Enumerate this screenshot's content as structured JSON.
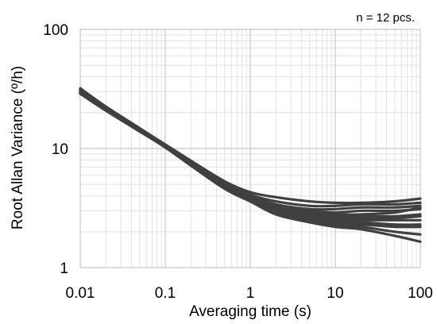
{
  "chart_data": {
    "type": "line",
    "title": "",
    "xlabel": "Averaging time (s)",
    "ylabel": "Root Allan Variance (º/h)",
    "annotation": "n = 12 pcs.",
    "x_scale": "log",
    "y_scale": "log",
    "xlim": [
      0.01,
      100
    ],
    "ylim": [
      1,
      100
    ],
    "x_ticks": [
      "0.01",
      "0.1",
      "1",
      "10",
      "100"
    ],
    "y_ticks": [
      "1",
      "10",
      "100"
    ],
    "grid": true,
    "legend": "none",
    "line_color": "#404040",
    "x": [
      0.01,
      0.02,
      0.05,
      0.1,
      0.2,
      0.5,
      1,
      2,
      5,
      10,
      20,
      50,
      100
    ],
    "series": [
      {
        "values": [
          32.0,
          22.5,
          14.8,
          10.8,
          7.9,
          5.3,
          4.3,
          3.9,
          3.6,
          3.5,
          3.5,
          3.6,
          3.8
        ]
      },
      {
        "values": [
          31.5,
          22.2,
          14.7,
          10.7,
          7.8,
          5.2,
          4.1,
          3.6,
          3.3,
          3.3,
          3.4,
          3.4,
          3.5
        ]
      },
      {
        "values": [
          31.0,
          22.0,
          14.6,
          10.7,
          7.7,
          5.1,
          4.0,
          3.4,
          3.1,
          3.1,
          3.2,
          3.2,
          3.3
        ]
      },
      {
        "values": [
          30.8,
          21.8,
          14.5,
          10.6,
          7.6,
          5.0,
          3.9,
          3.3,
          3.0,
          2.9,
          3.0,
          3.0,
          3.1
        ]
      },
      {
        "values": [
          30.5,
          21.7,
          14.4,
          10.6,
          7.5,
          4.9,
          3.9,
          3.3,
          2.9,
          2.8,
          2.8,
          2.9,
          3.2
        ]
      },
      {
        "values": [
          30.2,
          21.6,
          14.4,
          10.5,
          7.5,
          4.9,
          3.8,
          3.2,
          2.8,
          2.7,
          2.7,
          2.7,
          2.8
        ]
      },
      {
        "values": [
          30.0,
          21.5,
          14.3,
          10.5,
          7.4,
          4.8,
          3.8,
          3.1,
          2.7,
          2.6,
          2.6,
          2.6,
          2.7
        ]
      },
      {
        "values": [
          29.8,
          21.3,
          14.2,
          10.4,
          7.4,
          4.8,
          3.7,
          3.0,
          2.6,
          2.5,
          2.5,
          2.5,
          2.5
        ]
      },
      {
        "values": [
          29.5,
          21.2,
          14.1,
          10.4,
          7.3,
          4.7,
          3.7,
          3.0,
          2.6,
          2.4,
          2.4,
          2.3,
          2.3
        ]
      },
      {
        "values": [
          29.3,
          21.0,
          14.0,
          10.3,
          7.3,
          4.7,
          3.6,
          2.9,
          2.5,
          2.3,
          2.3,
          2.2,
          2.2
        ]
      },
      {
        "values": [
          29.0,
          20.9,
          14.0,
          10.3,
          7.2,
          4.6,
          3.6,
          2.9,
          2.5,
          2.3,
          2.2,
          2.0,
          1.9
        ]
      },
      {
        "values": [
          28.8,
          20.8,
          13.9,
          10.2,
          7.2,
          4.6,
          3.6,
          2.8,
          2.4,
          2.2,
          2.1,
          1.85,
          1.65
        ]
      }
    ]
  }
}
